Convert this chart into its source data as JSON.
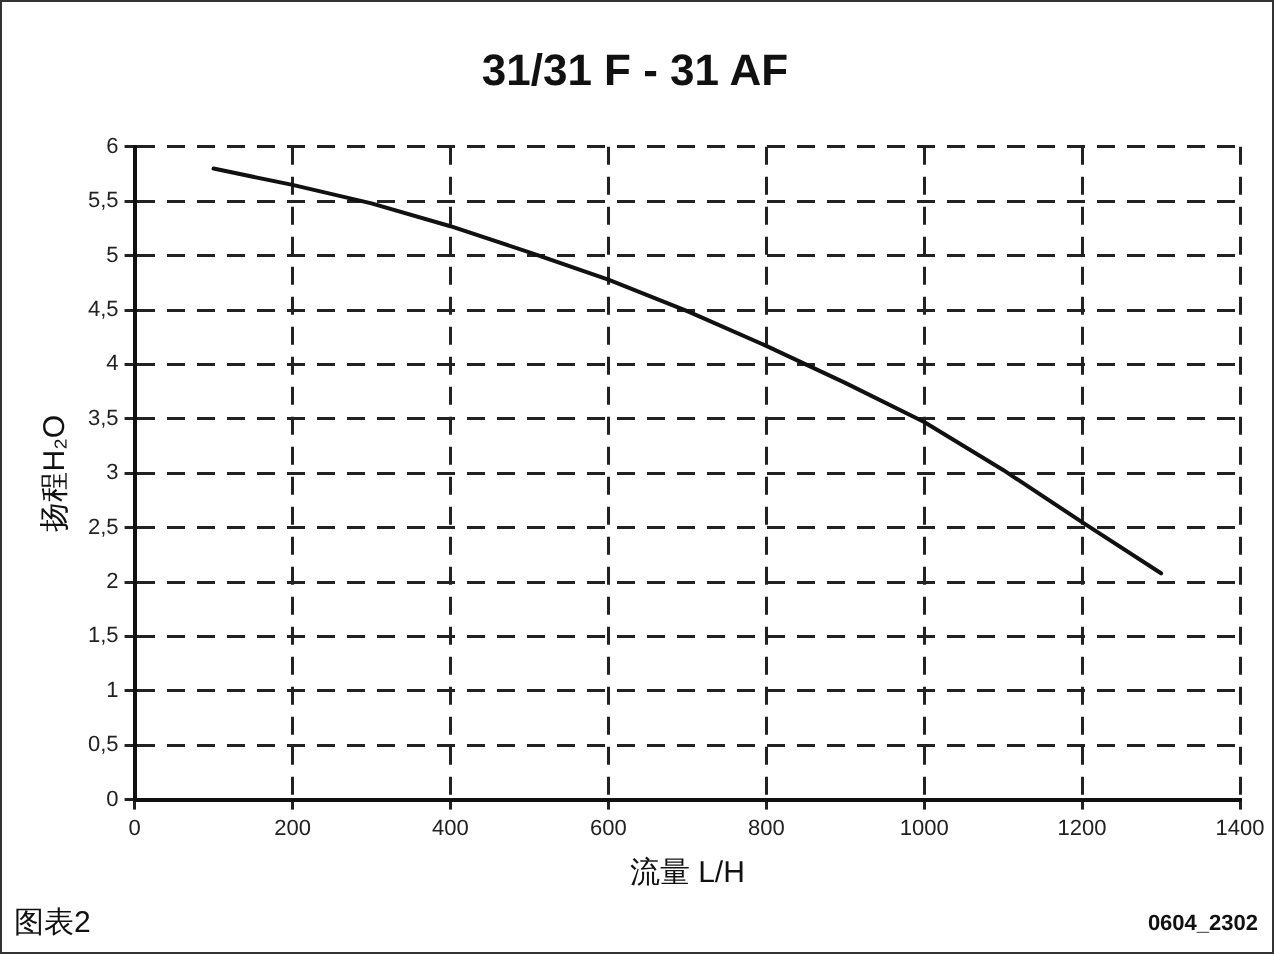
{
  "chart_data": {
    "type": "line",
    "title": "31/31 F - 31 AF",
    "xlabel": "流量 L/H",
    "ylabel": "扬程H₂O",
    "x": [
      100,
      200,
      300,
      400,
      500,
      600,
      700,
      800,
      900,
      1000,
      1100,
      1200,
      1300
    ],
    "series": [
      {
        "color": "#111111",
        "values": [
          5.8,
          5.65,
          5.48,
          5.27,
          5.03,
          4.78,
          4.49,
          4.17,
          3.83,
          3.47,
          3.03,
          2.55,
          2.08
        ]
      }
    ],
    "xlim": [
      0,
      1400
    ],
    "xticks": [
      0,
      200,
      400,
      600,
      800,
      1000,
      1200,
      1400
    ],
    "ylim": [
      0,
      6
    ],
    "yticks": [
      0,
      {
        "value": 0.5,
        "label": "0,5"
      },
      1,
      {
        "value": 1.5,
        "label": "1,5"
      },
      2,
      {
        "value": 2.5,
        "label": "2,5"
      },
      3,
      {
        "value": 3.5,
        "label": "3,5"
      },
      4,
      {
        "value": 4.5,
        "label": "4,5"
      },
      5,
      {
        "value": 5.5,
        "label": "5,5"
      },
      6
    ],
    "grid": true,
    "legend": false,
    "marker": "none",
    "line_style": "solid",
    "annotations": [
      "图表2",
      "0604_2302"
    ]
  }
}
